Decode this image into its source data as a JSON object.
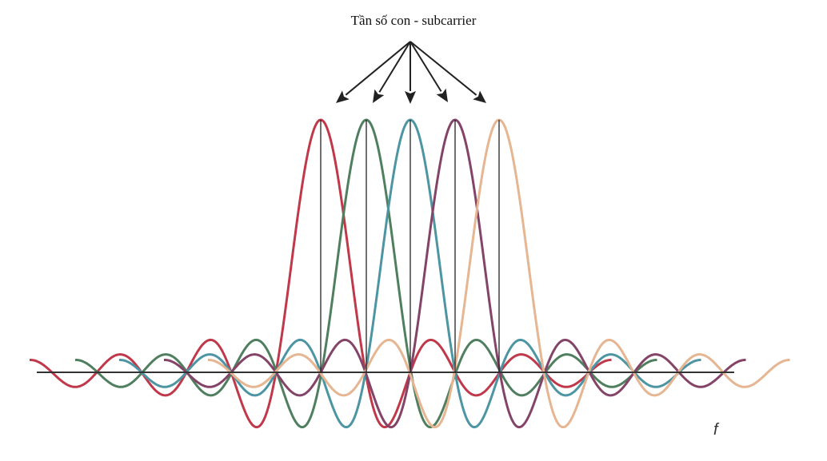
{
  "diagram": {
    "title": "Tần số con - subcarrier",
    "axis_label": "f",
    "subcarriers": [
      {
        "color": "#c0394b"
      },
      {
        "color": "#4f7f5e"
      },
      {
        "color": "#4d95a3"
      },
      {
        "color": "#834467"
      },
      {
        "color": "#e6b591"
      }
    ],
    "axis_color": "#333333",
    "arrow_color": "#222222"
  }
}
